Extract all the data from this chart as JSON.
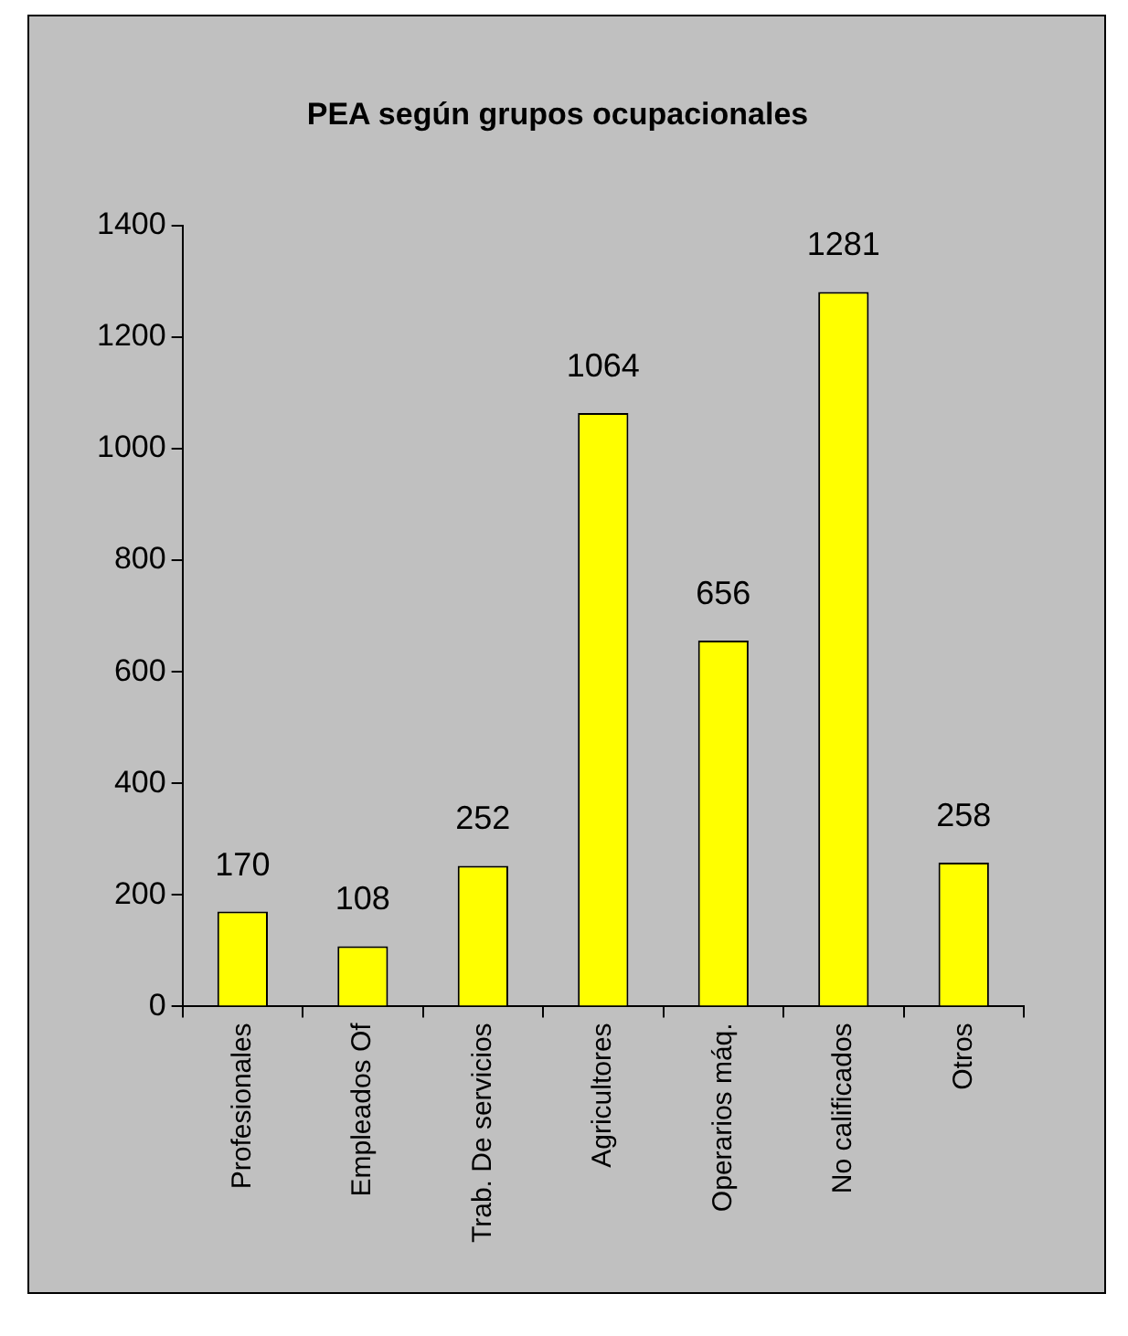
{
  "chart_data": {
    "type": "bar",
    "title": "PEA según grupos ocupacionales",
    "categories": [
      "Profesionales",
      "Empleados Of",
      "Trab. De servicios",
      "Agricultores",
      "Operarios máq.",
      "No calificados",
      "Otros"
    ],
    "values": [
      170,
      108,
      252,
      1064,
      656,
      1281,
      258
    ],
    "color": "#ffff00",
    "ylim": [
      0,
      1400
    ],
    "yticks": [
      0,
      200,
      400,
      600,
      800,
      1000,
      1200,
      1400
    ],
    "data_labels": true
  }
}
